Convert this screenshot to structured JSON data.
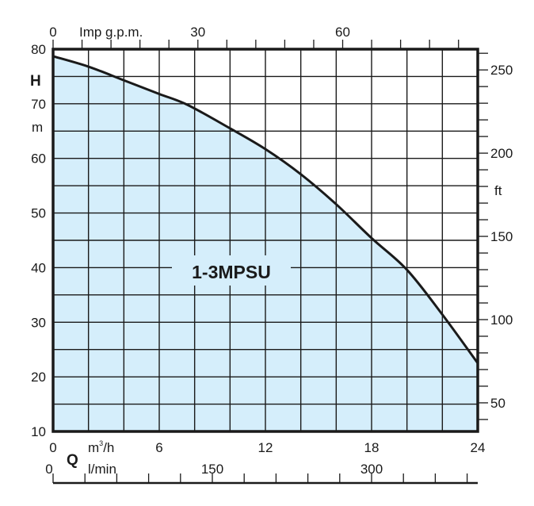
{
  "chart_data": {
    "type": "area",
    "series_label": "1-3MPSU",
    "x": [
      0,
      2,
      4,
      6,
      7.6,
      10,
      12,
      14,
      16,
      18,
      20,
      22,
      24
    ],
    "y": [
      78.7,
      76.8,
      74.3,
      71.8,
      69.8,
      65.5,
      61.7,
      57.1,
      51.6,
      45.4,
      39.6,
      31.4,
      22.5
    ],
    "xlim": [
      0,
      24
    ],
    "ylim": [
      10,
      80
    ],
    "x_axis": {
      "symbol": "Q",
      "unit": "m³/h",
      "unit_base": "m",
      "unit_sup": "3",
      "unit_tail": "/h",
      "ticks": [
        0,
        6,
        12,
        18,
        24
      ]
    },
    "x_axis_top": {
      "unit": "Imp g.p.m.",
      "ticks": [
        0,
        30,
        60
      ]
    },
    "x_axis_bottom2": {
      "unit": "l/min",
      "ticks": [
        0,
        150,
        300
      ]
    },
    "y_axis": {
      "symbol": "H",
      "unit": "m",
      "ticks": [
        80,
        70,
        60,
        50,
        40,
        30,
        20,
        10
      ]
    },
    "y_axis_right": {
      "unit": "ft",
      "ticks": [
        250,
        200,
        150,
        100,
        50
      ]
    },
    "grid": true,
    "grid_step": {
      "x": 2,
      "y": 5
    },
    "colors": {
      "fill": "#d5eefb",
      "line": "#1a1a1a"
    }
  }
}
